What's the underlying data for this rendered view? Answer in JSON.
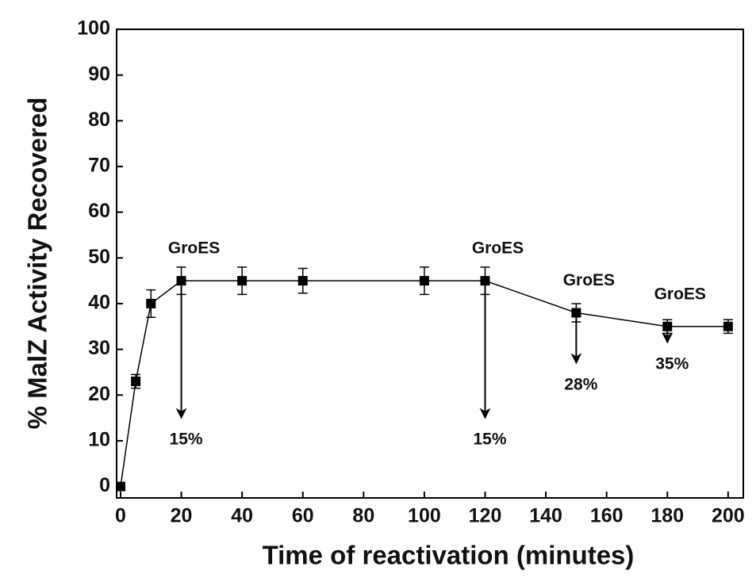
{
  "chart_data": {
    "type": "line",
    "xlabel": "Time of reactivation (minutes)",
    "ylabel": "% MalZ Activity Recovered",
    "x": [
      0,
      5,
      10,
      20,
      40,
      60,
      100,
      120,
      150,
      180,
      200
    ],
    "series": [
      {
        "color": "#000000",
        "values": [
          0,
          23,
          40,
          45,
          45,
          45,
          45,
          45,
          38,
          35,
          35
        ],
        "errors": [
          0,
          1.5,
          3,
          3,
          3,
          2.7,
          3,
          3,
          2,
          1.5,
          1.5
        ]
      }
    ],
    "xlim": [
      -1.3,
      205
    ],
    "xticks": [
      0,
      20,
      40,
      60,
      80,
      100,
      120,
      140,
      160,
      180,
      200
    ],
    "ylim": [
      -2.5,
      100
    ],
    "yticks": [
      0,
      10,
      20,
      30,
      40,
      50,
      60,
      70,
      80,
      90,
      100
    ],
    "annotations": [
      {
        "label": "GroES",
        "x": 20,
        "arrow_to": 15,
        "result": "15%"
      },
      {
        "label": "GroES",
        "x": 120,
        "arrow_to": 15,
        "result": "15%"
      },
      {
        "label": "GroES",
        "x": 150,
        "arrow_to": 27,
        "result": "28%"
      },
      {
        "label": "GroES",
        "x": 180,
        "arrow_to": 31.5,
        "result": "35%"
      }
    ]
  }
}
